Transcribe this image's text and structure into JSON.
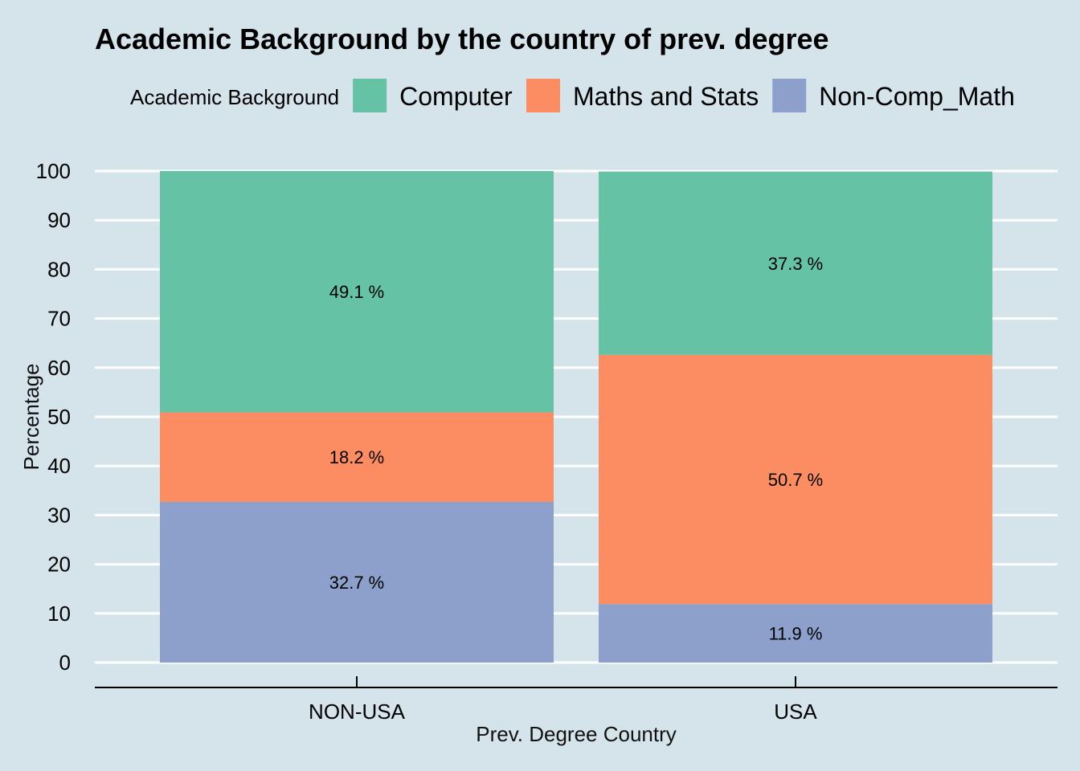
{
  "chart_data": {
    "type": "bar",
    "stacked": true,
    "title": "Academic Background by the country of prev. degree",
    "xlabel": "Prev. Degree Country",
    "ylabel": "Percentage",
    "ylim": [
      0,
      100
    ],
    "yticks": [
      "0",
      "10",
      "20",
      "30",
      "40",
      "50",
      "60",
      "70",
      "80",
      "90",
      "100"
    ],
    "grid": true,
    "legend": {
      "title": "Academic Background",
      "position": "top"
    },
    "categories": [
      "NON-USA",
      "USA"
    ],
    "series": [
      {
        "name": "Non-Comp_Math",
        "color": "#8da0cb",
        "values": [
          32.7,
          11.9
        ],
        "labels": [
          "32.7 %",
          "11.9 %"
        ]
      },
      {
        "name": "Maths and Stats",
        "color": "#fc8d62",
        "values": [
          18.2,
          50.7
        ],
        "labels": [
          "18.2 %",
          "50.7 %"
        ]
      },
      {
        "name": "Computer",
        "color": "#66c2a5",
        "values": [
          49.1,
          37.3
        ],
        "labels": [
          "49.1 %",
          "37.3 %"
        ]
      }
    ],
    "legend_order": [
      "Computer",
      "Maths and Stats",
      "Non-Comp_Math"
    ]
  }
}
